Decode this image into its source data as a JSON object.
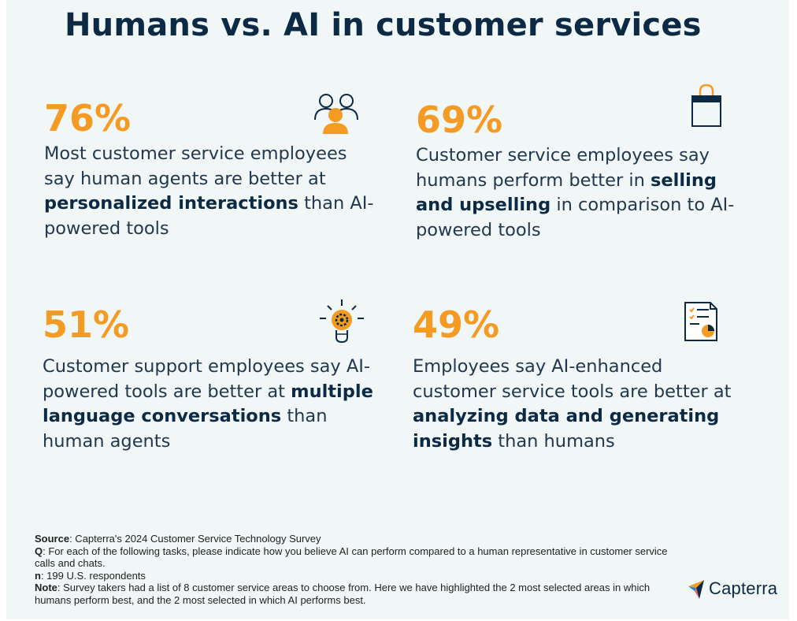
{
  "title": "Humans vs. AI in customer services",
  "stats": [
    {
      "percent": "76%",
      "icon": "people-icon",
      "text_before": "Most customer service employees say human agents are better at ",
      "bold": "personalized interactions",
      "text_after": " than AI-powered tools"
    },
    {
      "percent": "69%",
      "icon": "shopping-bag-icon",
      "text_before": "Customer service employees say humans perform better in ",
      "bold": "selling and upselling",
      "text_after": " in comparison to AI-powered tools"
    },
    {
      "percent": "51%",
      "icon": "lightbulb-gear-icon",
      "text_before": "Customer support employees say AI-powered tools are better at ",
      "bold": "multiple language conversations",
      "text_after": " than human agents"
    },
    {
      "percent": "49%",
      "icon": "report-chart-icon",
      "text_before": "Employees say AI-enhanced customer service tools are better at ",
      "bold": "analyzing data and generating insights",
      "text_after": " than humans"
    }
  ],
  "footer": {
    "source_label": "Source",
    "source_text": ": Capterra's 2024 Customer Service Technology Survey",
    "q_label": "Q",
    "q_text": ": For each of the following tasks, please indicate how you believe AI can perform compared to a human representative in customer service calls and chats.",
    "n_label": "n",
    "n_text": ": 199 U.S. respondents",
    "note_label": "Note",
    "note_text": ": Survey takers had a list of 8 customer service areas to choose from. Here we have highlighted the 2 most selected areas in which humans perform best, and the 2 most selected in which AI performs best."
  },
  "logo": {
    "text": "Capterra",
    "icon": "capterra-logo-icon"
  },
  "colors": {
    "accent": "#f59a23",
    "navy": "#0d2a45",
    "background": "#f1f6f7"
  }
}
